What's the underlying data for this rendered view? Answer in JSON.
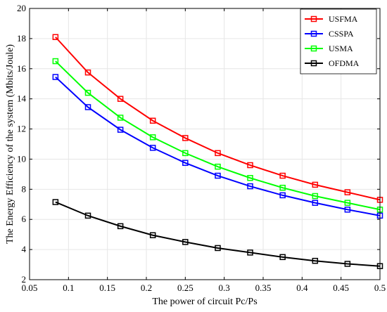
{
  "chart_data": {
    "type": "line",
    "xlabel": "The power of circuit Pc/Ps",
    "ylabel": "The Energy Efficiency of the system (Mbits/Joule)",
    "xlim": [
      0.05,
      0.5
    ],
    "ylim": [
      2,
      20
    ],
    "xticks": [
      0.05,
      0.1,
      0.15,
      0.2,
      0.25,
      0.3,
      0.35,
      0.4,
      0.45,
      0.5
    ],
    "xtick_labels": [
      "0.05",
      "0.1",
      "0.15",
      "0.2",
      "0.25",
      "0.3",
      "0.35",
      "0.4",
      "0.45",
      "0.5"
    ],
    "yticks": [
      2,
      4,
      6,
      8,
      10,
      12,
      14,
      16,
      18,
      20
    ],
    "ytick_labels": [
      "2",
      "4",
      "6",
      "8",
      "10",
      "12",
      "14",
      "16",
      "18",
      "20"
    ],
    "grid": true,
    "legend_position": "top-right",
    "x": [
      0.0833,
      0.125,
      0.1667,
      0.2083,
      0.25,
      0.2917,
      0.3333,
      0.375,
      0.4167,
      0.4583,
      0.5
    ],
    "series": [
      {
        "name": "USFMA",
        "color": "#ff0000",
        "marker": "square",
        "values": [
          18.1,
          15.75,
          14.0,
          12.55,
          11.4,
          10.4,
          9.6,
          8.9,
          8.3,
          7.8,
          7.3
        ]
      },
      {
        "name": "CSSPA",
        "color": "#0000ff",
        "marker": "square",
        "values": [
          15.45,
          13.45,
          11.95,
          10.75,
          9.75,
          8.9,
          8.2,
          7.6,
          7.1,
          6.65,
          6.25
        ]
      },
      {
        "name": "USMA",
        "color": "#00ff00",
        "marker": "square",
        "values": [
          16.5,
          14.4,
          12.75,
          11.45,
          10.4,
          9.5,
          8.75,
          8.1,
          7.55,
          7.1,
          6.65
        ]
      },
      {
        "name": "OFDMA",
        "color": "#000000",
        "marker": "square",
        "values": [
          7.15,
          6.25,
          5.55,
          4.95,
          4.5,
          4.1,
          3.8,
          3.5,
          3.25,
          3.05,
          2.9
        ]
      }
    ]
  }
}
